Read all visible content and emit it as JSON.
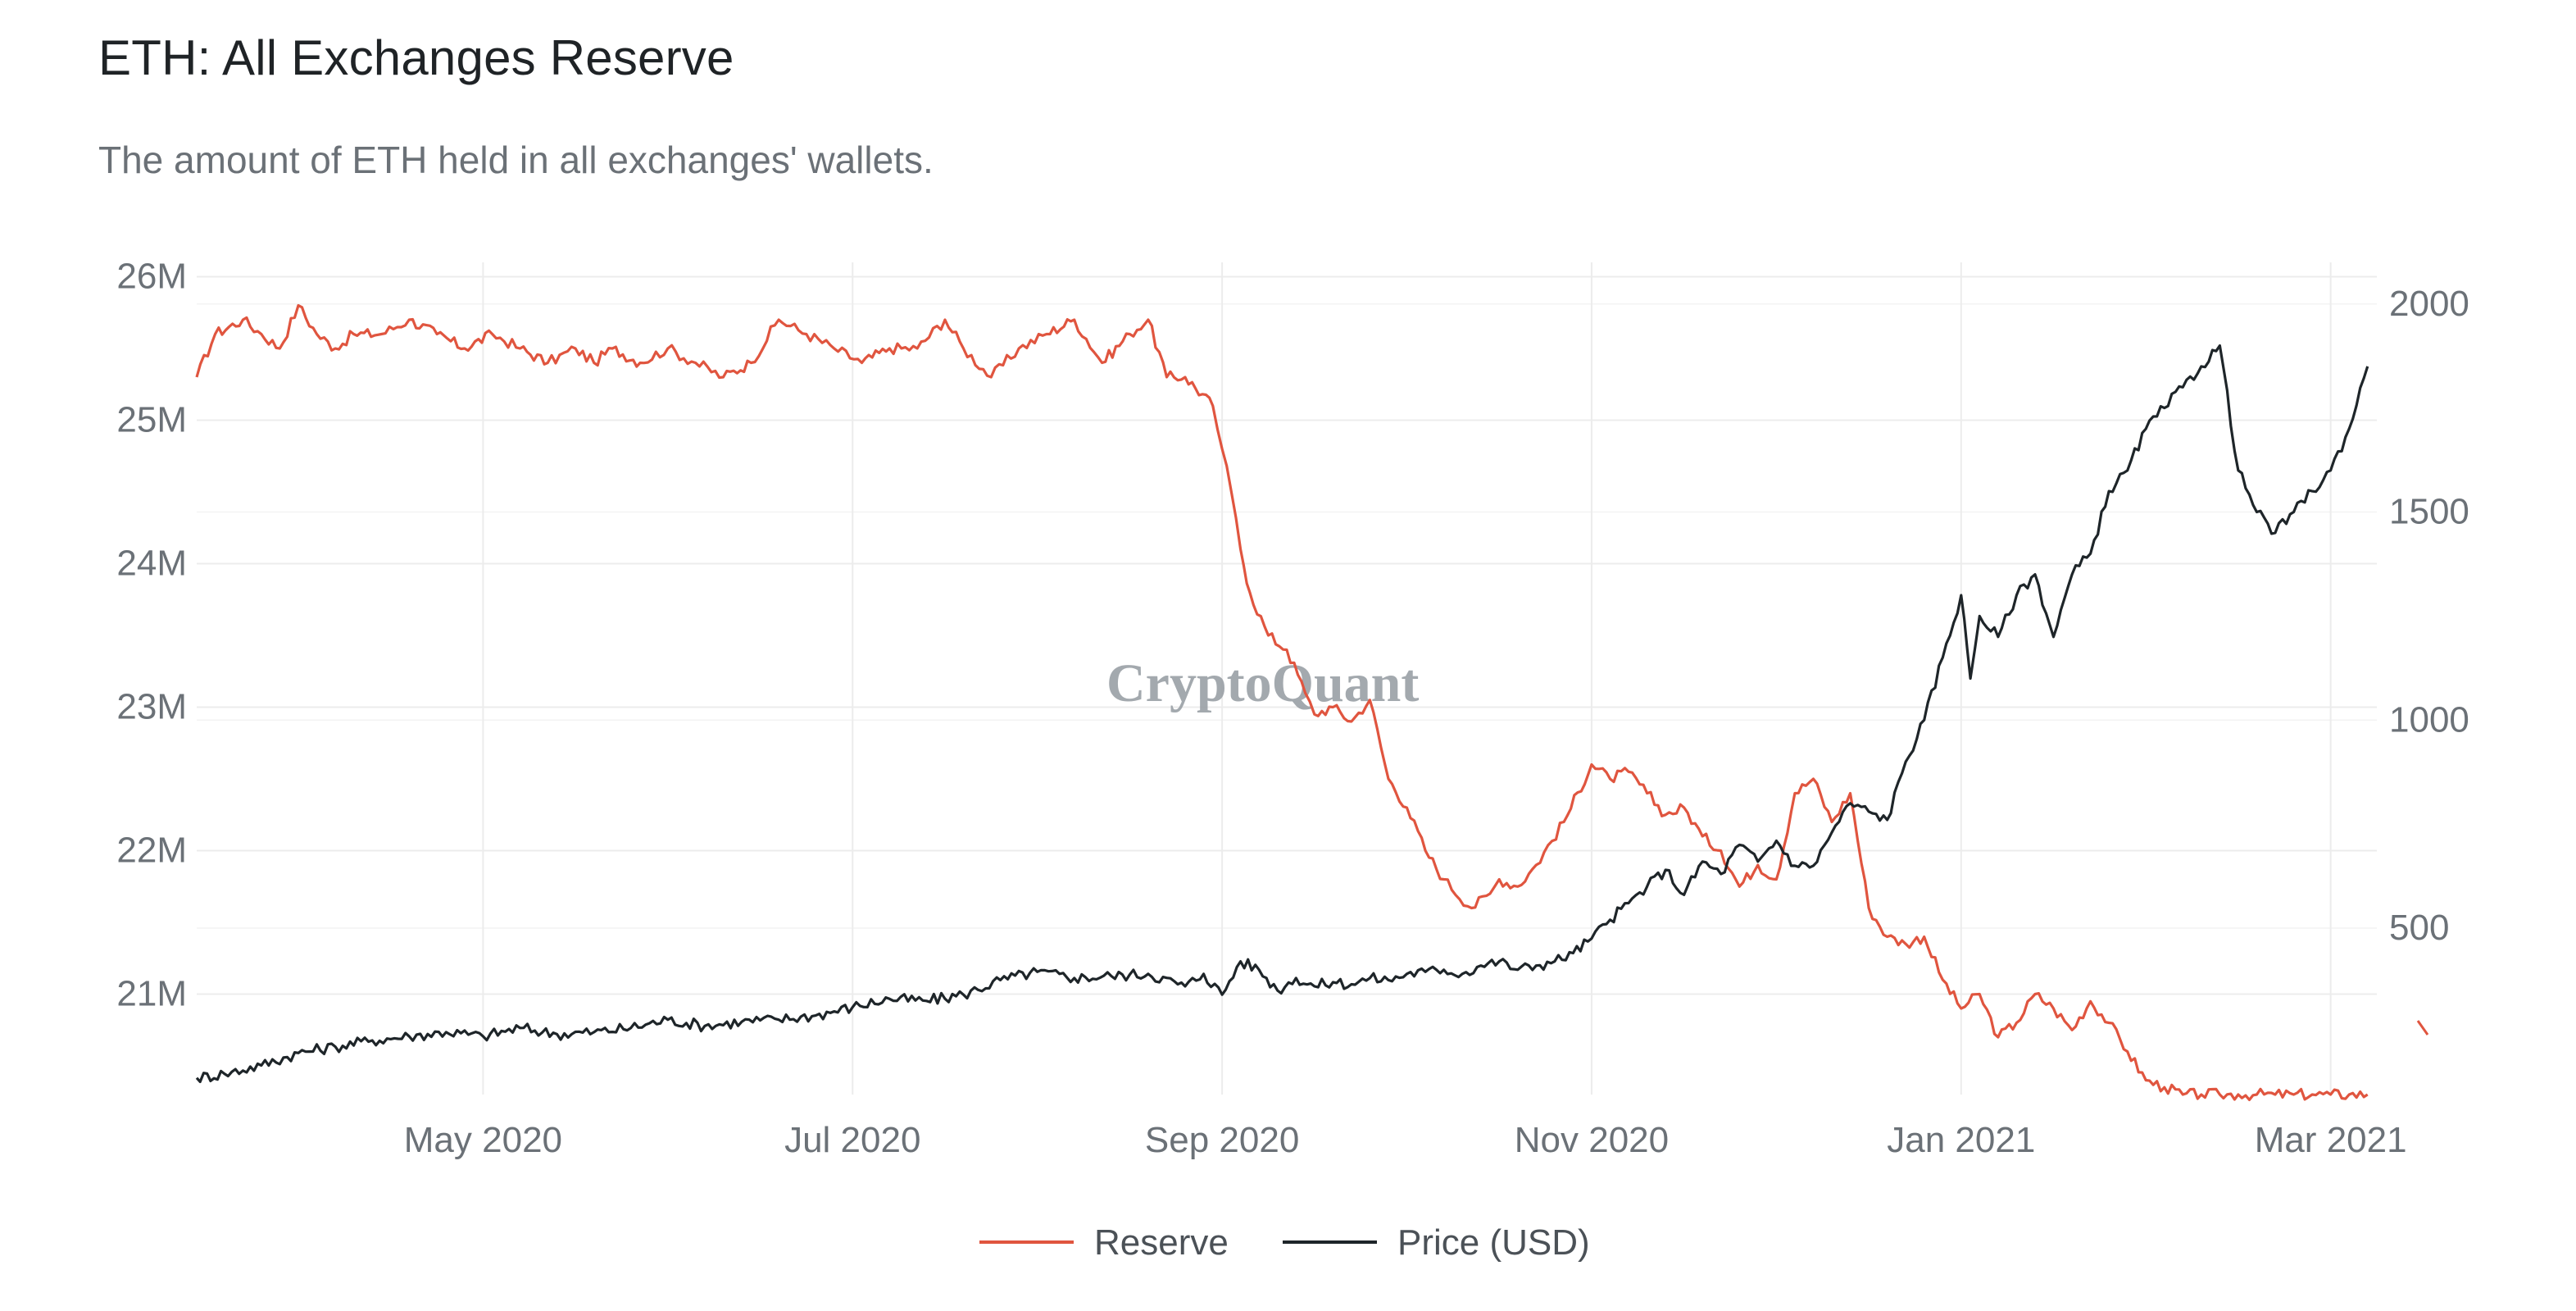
{
  "header": {
    "title": "ETH: All Exchanges Reserve",
    "subtitle": "The amount of ETH held in all exchanges' wallets."
  },
  "watermark": "CryptoQuant",
  "chart_data": {
    "type": "line",
    "title": "ETH: All Exchanges Reserve",
    "subtitle": "The amount of ETH held in all exchanges' wallets.",
    "x_tick_labels": [
      "May 2020",
      "Jul 2020",
      "Sep 2020",
      "Nov 2020",
      "Jan 2021",
      "Mar 2021"
    ],
    "x_tick_positions": [
      1,
      3,
      5,
      7,
      9,
      11
    ],
    "x_range": [
      -0.55,
      11.25
    ],
    "y_left": {
      "label": "Reserve",
      "range": [
        20.3,
        26.1
      ],
      "ticks": [
        21,
        22,
        23,
        24,
        25,
        26
      ],
      "tick_labels": [
        "21M",
        "22M",
        "23M",
        "24M",
        "25M",
        "26M"
      ]
    },
    "y_right": {
      "label": "Price (USD)",
      "range": [
        100,
        2100
      ],
      "ticks": [
        500,
        1000,
        1500,
        2000
      ],
      "tick_labels": [
        "500",
        "1000",
        "1500",
        "2000"
      ]
    },
    "legend": {
      "position": "bottom-center"
    },
    "colors": {
      "reserve": "#e0553f",
      "price": "#1e2529",
      "grid": "#ececec"
    },
    "series": [
      {
        "name": "Reserve",
        "axis": "left",
        "color": "#e0553f",
        "x": [
          -0.55,
          -0.45,
          -0.3,
          -0.2,
          -0.1,
          0.0,
          0.1,
          0.2,
          0.3,
          0.45,
          0.6,
          0.75,
          0.9,
          1.05,
          1.2,
          1.35,
          1.5,
          1.6,
          1.7,
          1.85,
          2.0,
          2.15,
          2.3,
          2.45,
          2.6,
          2.75,
          2.9,
          3.05,
          3.2,
          3.35,
          3.5,
          3.6,
          3.75,
          3.9,
          4.05,
          4.2,
          4.35,
          4.5,
          4.6,
          4.7,
          4.8,
          4.95,
          5.0,
          5.05,
          5.1,
          5.15,
          5.25,
          5.35,
          5.45,
          5.5,
          5.6,
          5.7,
          5.8,
          5.9,
          6.0,
          6.1,
          6.2,
          6.35,
          6.45,
          6.5,
          6.6,
          6.7,
          6.85,
          7.0,
          7.1,
          7.2,
          7.3,
          7.4,
          7.5,
          7.6,
          7.7,
          7.8,
          7.9,
          8.0,
          8.1,
          8.2,
          8.3,
          8.4,
          8.5,
          8.6,
          8.7,
          8.8,
          8.9,
          9.0,
          9.1,
          9.2,
          9.3,
          9.4,
          9.5,
          9.6,
          9.7,
          9.8,
          9.9,
          10.0,
          10.1,
          10.2,
          10.3,
          10.4,
          10.5,
          10.6,
          10.7,
          10.8,
          10.9,
          11.0,
          11.1,
          11.2
        ],
        "y": [
          25.3,
          25.6,
          25.7,
          25.6,
          25.5,
          25.8,
          25.6,
          25.5,
          25.6,
          25.6,
          25.7,
          25.6,
          25.5,
          25.6,
          25.5,
          25.4,
          25.5,
          25.4,
          25.5,
          25.4,
          25.5,
          25.4,
          25.3,
          25.4,
          25.7,
          25.6,
          25.5,
          25.4,
          25.5,
          25.5,
          25.7,
          25.5,
          25.3,
          25.5,
          25.6,
          25.7,
          25.4,
          25.6,
          25.7,
          25.3,
          25.3,
          25.1,
          24.8,
          24.5,
          24.1,
          23.8,
          23.5,
          23.4,
          23.1,
          22.95,
          23.0,
          22.9,
          23.05,
          22.5,
          22.3,
          22.0,
          21.8,
          21.6,
          21.7,
          21.8,
          21.75,
          21.9,
          22.2,
          22.6,
          22.5,
          22.55,
          22.4,
          22.25,
          22.3,
          22.1,
          22.0,
          21.75,
          21.9,
          21.8,
          22.4,
          22.5,
          22.2,
          22.4,
          21.6,
          21.4,
          21.35,
          21.4,
          21.1,
          20.9,
          21.0,
          20.7,
          20.8,
          21.0,
          20.9,
          20.75,
          20.95,
          20.8,
          20.6,
          20.4,
          20.35,
          20.3,
          20.3,
          20.3,
          20.3,
          20.3,
          20.3,
          20.3,
          20.3,
          20.3,
          20.3,
          20.3
        ]
      },
      {
        "name": "Price (USD)",
        "axis": "right",
        "color": "#1e2529",
        "x": [
          -0.55,
          -0.4,
          -0.2,
          0.0,
          0.2,
          0.4,
          0.6,
          0.8,
          1.0,
          1.2,
          1.4,
          1.6,
          1.8,
          2.0,
          2.2,
          2.4,
          2.6,
          2.8,
          3.0,
          3.2,
          3.4,
          3.6,
          3.8,
          4.0,
          4.2,
          4.4,
          4.6,
          4.8,
          4.9,
          5.0,
          5.1,
          5.2,
          5.3,
          5.4,
          5.5,
          5.6,
          5.7,
          5.8,
          5.9,
          6.0,
          6.1,
          6.2,
          6.3,
          6.4,
          6.5,
          6.6,
          6.7,
          6.8,
          6.9,
          7.0,
          7.1,
          7.2,
          7.3,
          7.4,
          7.5,
          7.6,
          7.7,
          7.8,
          7.9,
          8.0,
          8.1,
          8.2,
          8.3,
          8.4,
          8.5,
          8.6,
          8.7,
          8.8,
          8.9,
          9.0,
          9.05,
          9.1,
          9.2,
          9.3,
          9.4,
          9.5,
          9.6,
          9.7,
          9.8,
          9.9,
          10.0,
          10.1,
          10.2,
          10.3,
          10.4,
          10.5,
          10.6,
          10.7,
          10.8,
          10.9,
          11.0,
          11.1,
          11.2
        ],
        "y": [
          140,
          150,
          170,
          200,
          215,
          230,
          240,
          250,
          240,
          260,
          245,
          250,
          260,
          280,
          265,
          275,
          280,
          290,
          310,
          330,
          325,
          340,
          375,
          395,
          380,
          385,
          390,
          360,
          390,
          340,
          420,
          400,
          350,
          380,
          360,
          370,
          365,
          380,
          375,
          390,
          395,
          400,
          390,
          410,
          420,
          400,
          410,
          420,
          440,
          475,
          520,
          560,
          600,
          640,
          580,
          660,
          630,
          700,
          660,
          710,
          650,
          650,
          730,
          800,
          780,
          760,
          900,
          1000,
          1150,
          1300,
          1100,
          1250,
          1200,
          1300,
          1350,
          1200,
          1350,
          1400,
          1550,
          1600,
          1700,
          1750,
          1800,
          1850,
          1900,
          1600,
          1500,
          1450,
          1500,
          1550,
          1600,
          1700,
          1850
        ]
      }
    ]
  }
}
